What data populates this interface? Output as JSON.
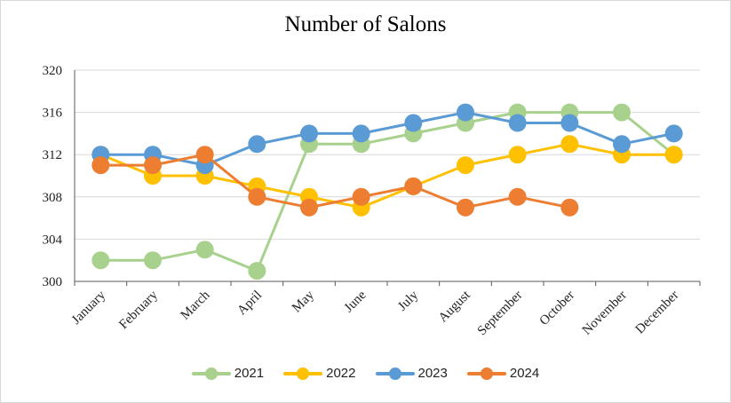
{
  "chart_data": {
    "type": "line",
    "title": "Number of Salons",
    "categories": [
      "January",
      "February",
      "March",
      "April",
      "May",
      "June",
      "July",
      "August",
      "September",
      "October",
      "November",
      "December"
    ],
    "ylim": [
      300,
      320
    ],
    "yticks": [
      300,
      304,
      308,
      312,
      316,
      320
    ],
    "grid": true,
    "legend_position": "bottom",
    "series": [
      {
        "name": "2021",
        "color": "#A9D18E",
        "values": [
          302,
          302,
          303,
          301,
          313,
          313,
          314,
          315,
          316,
          316,
          316,
          312
        ]
      },
      {
        "name": "2022",
        "color": "#FFC000",
        "values": [
          312,
          310,
          310,
          309,
          308,
          307,
          309,
          311,
          312,
          313,
          312,
          312
        ]
      },
      {
        "name": "2023",
        "color": "#5B9BD5",
        "values": [
          312,
          312,
          311,
          313,
          314,
          314,
          315,
          316,
          315,
          315,
          313,
          314
        ]
      },
      {
        "name": "2024",
        "color": "#ED7D31",
        "values": [
          311,
          311,
          312,
          308,
          307,
          308,
          309,
          307,
          308,
          307,
          null,
          null
        ]
      }
    ]
  }
}
